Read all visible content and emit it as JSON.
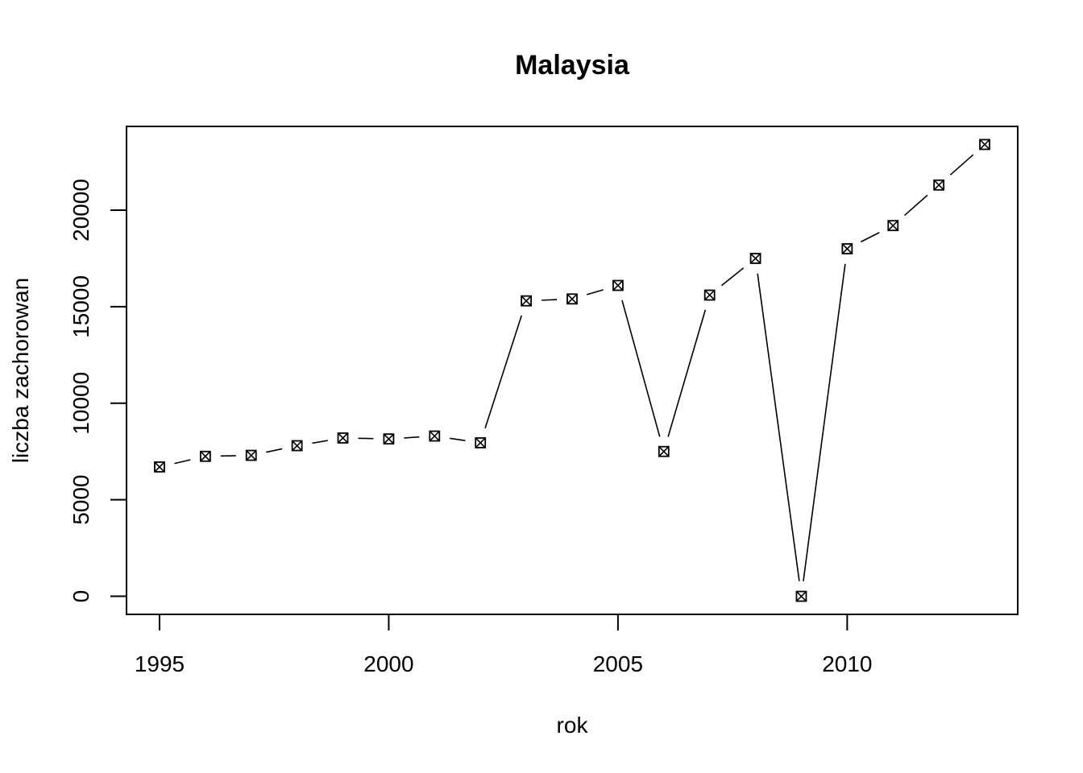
{
  "chart_data": {
    "type": "line",
    "title": "Malaysia",
    "xlabel": "rok",
    "ylabel": "liczba zachorowan",
    "x": [
      1995,
      1996,
      1997,
      1998,
      1999,
      2000,
      2001,
      2002,
      2003,
      2004,
      2005,
      2006,
      2007,
      2008,
      2009,
      2010,
      2011,
      2012,
      2013
    ],
    "series": [
      {
        "values": [
          6700,
          7250,
          7300,
          7800,
          8200,
          8150,
          8300,
          7950,
          15300,
          15400,
          16100,
          7500,
          15600,
          17500,
          0,
          18000,
          19200,
          21300,
          23400
        ]
      }
    ],
    "xticks": [
      1995,
      2000,
      2005,
      2010
    ],
    "xtick_labels": [
      "1995",
      "2000",
      "2005",
      "2010"
    ],
    "yticks": [
      0,
      5000,
      10000,
      15000,
      20000
    ],
    "ytick_labels": [
      "0",
      "5000",
      "10000",
      "15000",
      "20000"
    ],
    "xlim": [
      1994.28,
      2013.72
    ],
    "ylim": [
      -936,
      24336
    ],
    "grid": false,
    "marker": "square-x",
    "line_style": "overplotted (type b)"
  }
}
